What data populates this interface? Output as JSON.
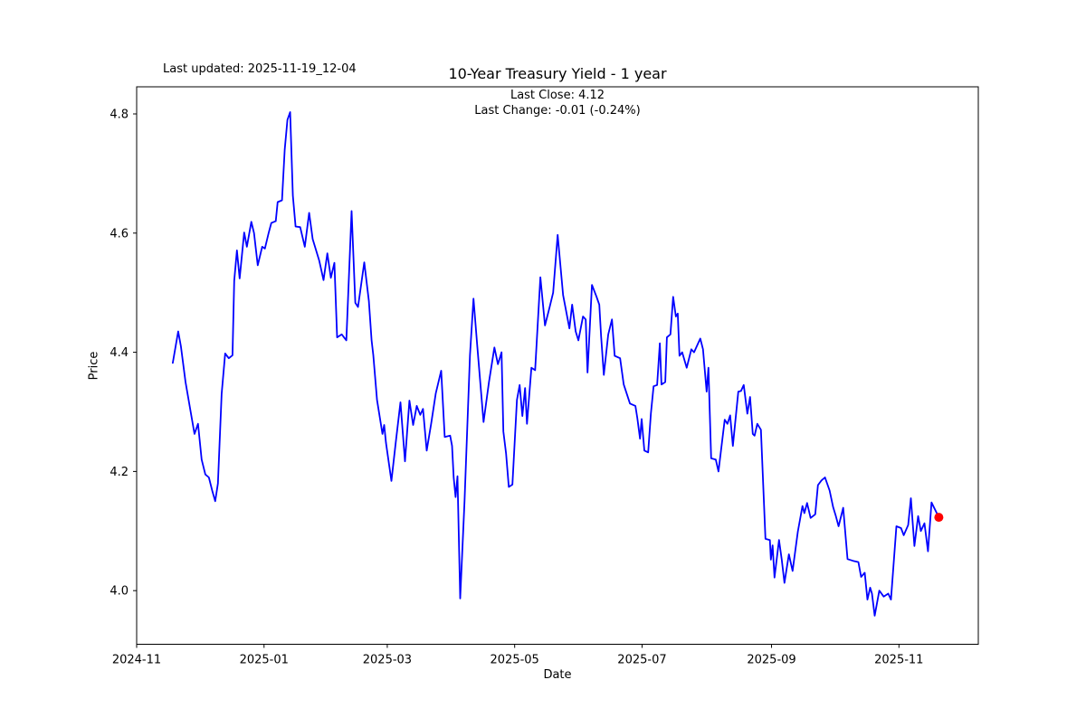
{
  "header": {
    "last_updated": "Last updated: 2025-11-19_12-04",
    "title": "10-Year Treasury Yield - 1 year",
    "last_close": "Last Close: 4.12",
    "last_change": "Last Change: -0.01 (-0.24%)"
  },
  "chart_data": {
    "type": "line",
    "title": "10-Year Treasury Yield - 1 year",
    "xlabel": "Date",
    "ylabel": "Price",
    "legend": "none",
    "grid": false,
    "line_color": "#0000ff",
    "last_point_marker_color": "#ff0000",
    "last_close": 4.12,
    "last_change": -0.01,
    "last_change_pct": "-0.24%",
    "x_axis_start_label": "2024-11",
    "xlim_days": [
      0,
      403
    ],
    "ylim": [
      3.91,
      4.8455
    ],
    "y_ticks": [
      4.0,
      4.2,
      4.4,
      4.6,
      4.8
    ],
    "x_ticks": [
      {
        "day": 0,
        "label": "2024-11"
      },
      {
        "day": 61,
        "label": "2025-01"
      },
      {
        "day": 120,
        "label": "2025-03"
      },
      {
        "day": 181,
        "label": "2025-05"
      },
      {
        "day": 242,
        "label": "2025-07"
      },
      {
        "day": 304,
        "label": "2025-09"
      },
      {
        "day": 365,
        "label": "2025-11"
      }
    ],
    "points_format": [
      "days_since_2024-11-01",
      "yield_percent"
    ],
    "points": [
      [
        17.3,
        4.382
      ],
      [
        19.9,
        4.435
      ],
      [
        21.2,
        4.41
      ],
      [
        23.4,
        4.35
      ],
      [
        27.7,
        4.263
      ],
      [
        29.4,
        4.28
      ],
      [
        31.1,
        4.22
      ],
      [
        32.9,
        4.195
      ],
      [
        34.6,
        4.19
      ],
      [
        36.3,
        4.166
      ],
      [
        37.6,
        4.15
      ],
      [
        38.9,
        4.18
      ],
      [
        40.7,
        4.33
      ],
      [
        42.4,
        4.398
      ],
      [
        44.1,
        4.39
      ],
      [
        45.9,
        4.395
      ],
      [
        46.7,
        4.52
      ],
      [
        48.0,
        4.571
      ],
      [
        49.3,
        4.524
      ],
      [
        51.5,
        4.601
      ],
      [
        52.8,
        4.577
      ],
      [
        54.9,
        4.619
      ],
      [
        56.2,
        4.6
      ],
      [
        58.0,
        4.546
      ],
      [
        60.1,
        4.577
      ],
      [
        61.4,
        4.574
      ],
      [
        63.2,
        4.6
      ],
      [
        64.5,
        4.617
      ],
      [
        66.6,
        4.62
      ],
      [
        67.5,
        4.652
      ],
      [
        69.6,
        4.655
      ],
      [
        70.9,
        4.74
      ],
      [
        72.2,
        4.79
      ],
      [
        73.5,
        4.803
      ],
      [
        74.8,
        4.663
      ],
      [
        76.1,
        4.611
      ],
      [
        78.3,
        4.61
      ],
      [
        80.5,
        4.577
      ],
      [
        82.6,
        4.634
      ],
      [
        84.3,
        4.59
      ],
      [
        87.4,
        4.554
      ],
      [
        89.5,
        4.521
      ],
      [
        91.3,
        4.566
      ],
      [
        93.0,
        4.525
      ],
      [
        94.7,
        4.55
      ],
      [
        96.0,
        4.425
      ],
      [
        98.2,
        4.43
      ],
      [
        100.4,
        4.42
      ],
      [
        102.9,
        4.637
      ],
      [
        104.7,
        4.483
      ],
      [
        106.0,
        4.476
      ],
      [
        109.0,
        4.551
      ],
      [
        111.2,
        4.486
      ],
      [
        112.5,
        4.42
      ],
      [
        113.3,
        4.395
      ],
      [
        115.1,
        4.32
      ],
      [
        117.7,
        4.263
      ],
      [
        118.5,
        4.278
      ],
      [
        119.4,
        4.248
      ],
      [
        122.0,
        4.184
      ],
      [
        124.1,
        4.25
      ],
      [
        126.3,
        4.316
      ],
      [
        128.5,
        4.217
      ],
      [
        130.6,
        4.319
      ],
      [
        132.4,
        4.278
      ],
      [
        134.1,
        4.31
      ],
      [
        135.8,
        4.295
      ],
      [
        137.1,
        4.305
      ],
      [
        138.9,
        4.235
      ],
      [
        141.0,
        4.28
      ],
      [
        143.2,
        4.331
      ],
      [
        145.8,
        4.369
      ],
      [
        147.5,
        4.258
      ],
      [
        150.1,
        4.26
      ],
      [
        151.0,
        4.243
      ],
      [
        151.8,
        4.19
      ],
      [
        152.7,
        4.157
      ],
      [
        153.6,
        4.192
      ],
      [
        154.9,
        3.987
      ],
      [
        157.0,
        4.15
      ],
      [
        159.6,
        4.395
      ],
      [
        161.3,
        4.49
      ],
      [
        163.1,
        4.41
      ],
      [
        166.1,
        4.283
      ],
      [
        168.7,
        4.35
      ],
      [
        171.3,
        4.408
      ],
      [
        173.0,
        4.38
      ],
      [
        174.7,
        4.4
      ],
      [
        175.6,
        4.267
      ],
      [
        176.9,
        4.23
      ],
      [
        178.2,
        4.174
      ],
      [
        179.9,
        4.178
      ],
      [
        182.1,
        4.32
      ],
      [
        183.4,
        4.345
      ],
      [
        184.7,
        4.293
      ],
      [
        186.0,
        4.34
      ],
      [
        186.9,
        4.28
      ],
      [
        189.0,
        4.374
      ],
      [
        190.8,
        4.37
      ],
      [
        193.3,
        4.526
      ],
      [
        195.5,
        4.445
      ],
      [
        197.7,
        4.475
      ],
      [
        199.4,
        4.5
      ],
      [
        201.6,
        4.597
      ],
      [
        204.2,
        4.496
      ],
      [
        207.2,
        4.44
      ],
      [
        208.5,
        4.48
      ],
      [
        210.2,
        4.435
      ],
      [
        211.5,
        4.42
      ],
      [
        213.7,
        4.46
      ],
      [
        215.0,
        4.455
      ],
      [
        215.9,
        4.366
      ],
      [
        218.0,
        4.513
      ],
      [
        220.2,
        4.493
      ],
      [
        221.5,
        4.48
      ],
      [
        222.4,
        4.427
      ],
      [
        223.7,
        4.362
      ],
      [
        225.8,
        4.43
      ],
      [
        227.6,
        4.455
      ],
      [
        228.9,
        4.394
      ],
      [
        231.5,
        4.39
      ],
      [
        233.2,
        4.346
      ],
      [
        236.2,
        4.314
      ],
      [
        238.8,
        4.31
      ],
      [
        239.7,
        4.29
      ],
      [
        241.0,
        4.255
      ],
      [
        241.8,
        4.288
      ],
      [
        243.1,
        4.235
      ],
      [
        244.9,
        4.232
      ],
      [
        246.2,
        4.297
      ],
      [
        247.5,
        4.343
      ],
      [
        249.2,
        4.345
      ],
      [
        250.5,
        4.415
      ],
      [
        251.3,
        4.346
      ],
      [
        253.1,
        4.35
      ],
      [
        253.9,
        4.425
      ],
      [
        255.6,
        4.43
      ],
      [
        256.9,
        4.493
      ],
      [
        258.2,
        4.46
      ],
      [
        259.1,
        4.465
      ],
      [
        259.9,
        4.394
      ],
      [
        261.2,
        4.4
      ],
      [
        263.4,
        4.374
      ],
      [
        265.6,
        4.405
      ],
      [
        266.9,
        4.4
      ],
      [
        269.9,
        4.423
      ],
      [
        271.2,
        4.405
      ],
      [
        272.9,
        4.334
      ],
      [
        273.8,
        4.374
      ],
      [
        275.1,
        4.222
      ],
      [
        277.3,
        4.22
      ],
      [
        278.6,
        4.2
      ],
      [
        281.6,
        4.287
      ],
      [
        282.9,
        4.28
      ],
      [
        284.2,
        4.294
      ],
      [
        285.5,
        4.243
      ],
      [
        288.1,
        4.334
      ],
      [
        289.4,
        4.335
      ],
      [
        290.7,
        4.345
      ],
      [
        292.4,
        4.297
      ],
      [
        293.7,
        4.325
      ],
      [
        295.0,
        4.263
      ],
      [
        295.9,
        4.26
      ],
      [
        297.2,
        4.28
      ],
      [
        298.9,
        4.27
      ],
      [
        301.1,
        4.087
      ],
      [
        303.2,
        4.085
      ],
      [
        303.7,
        4.052
      ],
      [
        304.5,
        4.076
      ],
      [
        305.4,
        4.022
      ],
      [
        307.6,
        4.085
      ],
      [
        308.9,
        4.052
      ],
      [
        310.2,
        4.013
      ],
      [
        312.3,
        4.061
      ],
      [
        314.1,
        4.033
      ],
      [
        316.6,
        4.099
      ],
      [
        318.8,
        4.142
      ],
      [
        319.7,
        4.13
      ],
      [
        321.0,
        4.147
      ],
      [
        322.7,
        4.122
      ],
      [
        324.9,
        4.128
      ],
      [
        326.2,
        4.177
      ],
      [
        327.9,
        4.185
      ],
      [
        329.6,
        4.19
      ],
      [
        331.8,
        4.168
      ],
      [
        333.5,
        4.14
      ],
      [
        334.8,
        4.125
      ],
      [
        336.1,
        4.108
      ],
      [
        338.3,
        4.139
      ],
      [
        340.4,
        4.053
      ],
      [
        343.0,
        4.05
      ],
      [
        345.6,
        4.048
      ],
      [
        346.9,
        4.023
      ],
      [
        348.6,
        4.03
      ],
      [
        349.9,
        3.985
      ],
      [
        351.2,
        4.005
      ],
      [
        352.1,
        3.995
      ],
      [
        353.4,
        3.958
      ],
      [
        355.6,
        4.0
      ],
      [
        357.7,
        3.99
      ],
      [
        359.9,
        3.995
      ],
      [
        361.2,
        3.985
      ],
      [
        363.8,
        4.108
      ],
      [
        366.0,
        4.105
      ],
      [
        367.3,
        4.093
      ],
      [
        369.4,
        4.11
      ],
      [
        370.7,
        4.155
      ],
      [
        372.4,
        4.075
      ],
      [
        374.2,
        4.125
      ],
      [
        375.5,
        4.1
      ],
      [
        377.2,
        4.113
      ],
      [
        378.9,
        4.066
      ],
      [
        380.6,
        4.148
      ],
      [
        382.4,
        4.135
      ],
      [
        384.1,
        4.123
      ]
    ]
  }
}
